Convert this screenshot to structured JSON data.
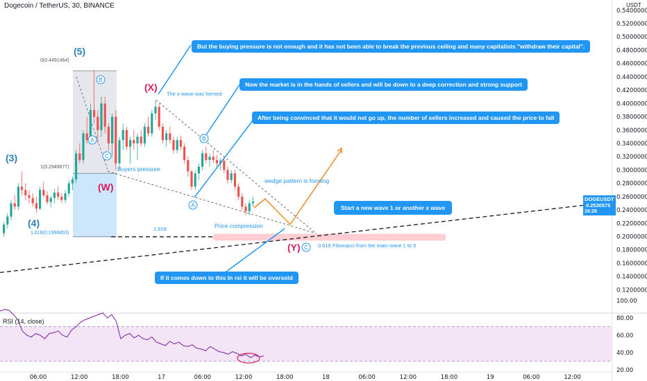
{
  "header": {
    "title": "Dogecoin / TetherUS, 30, BINANCE",
    "currency": "USDT"
  },
  "price_tag": {
    "symbol": "DOGEUSDT",
    "price": "0.2530575",
    "time": "16:26"
  },
  "callouts": [
    "But the buying pressure is not enough and it has not been able to break the previous ceiling and many capitalists \"withdraw their capital\".",
    "Now the market is in the hands of sellers and will be down to a deep correction and strong support",
    "After being convinced that it would not go up, the number of sellers increased and caused the price to fall",
    "Start a new wave 1 or another x wave",
    "If it comes down to this In rsi it will be oversold"
  ],
  "annotations": {
    "x_wave_formed": "The x-wave was formed",
    "buyers_pressure": "Buyers pressure",
    "wedge": "wedge pattern is forming",
    "price_compression": "Price compression",
    "fib_note": "0.618 Fibonacci from the main wave 1 to 5",
    "fib_1618": "1.618",
    "fib0_label": "0(0.4491464)",
    "fib1_label": "1(0.2949677)",
    "fib1618_label": "1.618(0.1996853)"
  },
  "waves": {
    "w3": "(3)",
    "w4": "(4)",
    "w5": "(5)",
    "wX": "(X)",
    "wW": "(W)",
    "wY": "(Y)",
    "a": "A",
    "b": "B",
    "c": "C"
  },
  "colors": {
    "up": "#26a69a",
    "down": "#ef5350",
    "blue": "#2196f3",
    "wave_pink": "#d81b60",
    "orange": "#f0891f",
    "rsi_line": "#7b1fa2",
    "rsi_band": "#f3e5f5",
    "fib_zone": "#ffcdd2"
  },
  "chart_data": [
    {
      "type": "candlestick",
      "y_axis": {
        "range": [
          0.11,
          0.545
        ],
        "ticks": [
          "0.5400000",
          "0.5200000",
          "0.5000000",
          "0.4800000",
          "0.4600000",
          "0.4400000",
          "0.4200000",
          "0.4000000",
          "0.3800000",
          "0.3600000",
          "0.3400000",
          "0.3200000",
          "0.3000000",
          "0.2800000",
          "0.2600000",
          "0.2400000",
          "0.2200000",
          "0.2000000",
          "0.1800000",
          "0.1600000",
          "0.1400000",
          "0.1200000"
        ]
      },
      "x_axis": {
        "ticks": [
          "06:00",
          "12:00",
          "18:00",
          "17",
          "06:00",
          "12:00",
          "18:00",
          "18",
          "06:00",
          "12:00",
          "18:00",
          "19",
          "06:00",
          "12:00"
        ]
      },
      "candles": [
        [
          0.205,
          0.222,
          0.2,
          0.218
        ],
        [
          0.218,
          0.235,
          0.212,
          0.23
        ],
        [
          0.23,
          0.255,
          0.225,
          0.25
        ],
        [
          0.25,
          0.262,
          0.24,
          0.245
        ],
        [
          0.245,
          0.28,
          0.24,
          0.275
        ],
        [
          0.275,
          0.298,
          0.262,
          0.27
        ],
        [
          0.27,
          0.28,
          0.255,
          0.262
        ],
        [
          0.262,
          0.27,
          0.25,
          0.258
        ],
        [
          0.258,
          0.265,
          0.245,
          0.25
        ],
        [
          0.25,
          0.26,
          0.236,
          0.242
        ],
        [
          0.242,
          0.275,
          0.24,
          0.27
        ],
        [
          0.27,
          0.282,
          0.258,
          0.262
        ],
        [
          0.262,
          0.268,
          0.248,
          0.252
        ],
        [
          0.252,
          0.262,
          0.244,
          0.258
        ],
        [
          0.258,
          0.272,
          0.25,
          0.266
        ],
        [
          0.266,
          0.275,
          0.255,
          0.26
        ],
        [
          0.26,
          0.265,
          0.25,
          0.255
        ],
        [
          0.255,
          0.27,
          0.25,
          0.265
        ],
        [
          0.265,
          0.285,
          0.26,
          0.28
        ],
        [
          0.28,
          0.29,
          0.27,
          0.286
        ],
        [
          0.286,
          0.33,
          0.28,
          0.325
        ],
        [
          0.325,
          0.34,
          0.31,
          0.315
        ],
        [
          0.315,
          0.36,
          0.31,
          0.355
        ],
        [
          0.355,
          0.38,
          0.34,
          0.345
        ],
        [
          0.345,
          0.4,
          0.34,
          0.39
        ],
        [
          0.39,
          0.45,
          0.37,
          0.38
        ],
        [
          0.38,
          0.39,
          0.34,
          0.36
        ],
        [
          0.36,
          0.41,
          0.35,
          0.4
        ],
        [
          0.4,
          0.41,
          0.355,
          0.365
        ],
        [
          0.365,
          0.37,
          0.33,
          0.34
        ],
        [
          0.34,
          0.385,
          0.32,
          0.38
        ],
        [
          0.38,
          0.39,
          0.3,
          0.31
        ],
        [
          0.31,
          0.35,
          0.3,
          0.345
        ],
        [
          0.345,
          0.37,
          0.33,
          0.36
        ],
        [
          0.36,
          0.365,
          0.33,
          0.335
        ],
        [
          0.335,
          0.35,
          0.31,
          0.345
        ],
        [
          0.345,
          0.36,
          0.33,
          0.34
        ],
        [
          0.34,
          0.355,
          0.315,
          0.35
        ],
        [
          0.35,
          0.36,
          0.335,
          0.34
        ],
        [
          0.34,
          0.37,
          0.335,
          0.365
        ],
        [
          0.365,
          0.38,
          0.35,
          0.355
        ],
        [
          0.355,
          0.39,
          0.35,
          0.385
        ],
        [
          0.385,
          0.405,
          0.375,
          0.395
        ],
        [
          0.395,
          0.4,
          0.36,
          0.365
        ],
        [
          0.365,
          0.37,
          0.34,
          0.345
        ],
        [
          0.345,
          0.36,
          0.335,
          0.355
        ],
        [
          0.355,
          0.365,
          0.34,
          0.345
        ],
        [
          0.345,
          0.35,
          0.325,
          0.33
        ],
        [
          0.33,
          0.35,
          0.325,
          0.345
        ],
        [
          0.345,
          0.352,
          0.33,
          0.335
        ],
        [
          0.335,
          0.34,
          0.31,
          0.315
        ],
        [
          0.315,
          0.32,
          0.29,
          0.298
        ],
        [
          0.298,
          0.3,
          0.27,
          0.275
        ],
        [
          0.275,
          0.3,
          0.27,
          0.295
        ],
        [
          0.295,
          0.31,
          0.285,
          0.305
        ],
        [
          0.305,
          0.33,
          0.3,
          0.325
        ],
        [
          0.325,
          0.335,
          0.31,
          0.315
        ],
        [
          0.315,
          0.325,
          0.305,
          0.32
        ],
        [
          0.32,
          0.33,
          0.31,
          0.315
        ],
        [
          0.315,
          0.322,
          0.305,
          0.31
        ],
        [
          0.31,
          0.318,
          0.3,
          0.314
        ],
        [
          0.314,
          0.32,
          0.295,
          0.3
        ],
        [
          0.3,
          0.305,
          0.28,
          0.285
        ],
        [
          0.285,
          0.3,
          0.28,
          0.295
        ],
        [
          0.295,
          0.3,
          0.27,
          0.275
        ],
        [
          0.275,
          0.28,
          0.255,
          0.26
        ],
        [
          0.26,
          0.265,
          0.24,
          0.245
        ],
        [
          0.245,
          0.25,
          0.232,
          0.238
        ],
        [
          0.238,
          0.255,
          0.232,
          0.25
        ],
        [
          0.25,
          0.26,
          0.245,
          0.253
        ]
      ],
      "fib_levels": [
        {
          "label": "0(0.4491464)",
          "price": 0.4491464
        },
        {
          "label": "1(0.2949677)",
          "price": 0.2949677
        },
        {
          "label": "1.618(0.1996853)",
          "price": 0.1996853
        }
      ],
      "fib_target_zone": [
        0.197,
        0.201
      ]
    },
    {
      "type": "line",
      "title": "RSI (14, close)",
      "y_axis": {
        "range": [
          15,
          105
        ],
        "ticks": [
          "100.00",
          "80.00",
          "60.00",
          "40.00",
          "20.00"
        ]
      },
      "band": [
        30,
        70
      ],
      "values": [
        88,
        90,
        89,
        84,
        78,
        65,
        60,
        58,
        62,
        60,
        56,
        62,
        63,
        65,
        60,
        58,
        66,
        70,
        75,
        78,
        80,
        82,
        84,
        86,
        80,
        84,
        76,
        56,
        60,
        62,
        57,
        60,
        56,
        55,
        58,
        52,
        50,
        48,
        53,
        50,
        52,
        48,
        47,
        49,
        45,
        44,
        42,
        47,
        44,
        41,
        40,
        38,
        41,
        39,
        36,
        38,
        34,
        37,
        35,
        36
      ]
    }
  ]
}
